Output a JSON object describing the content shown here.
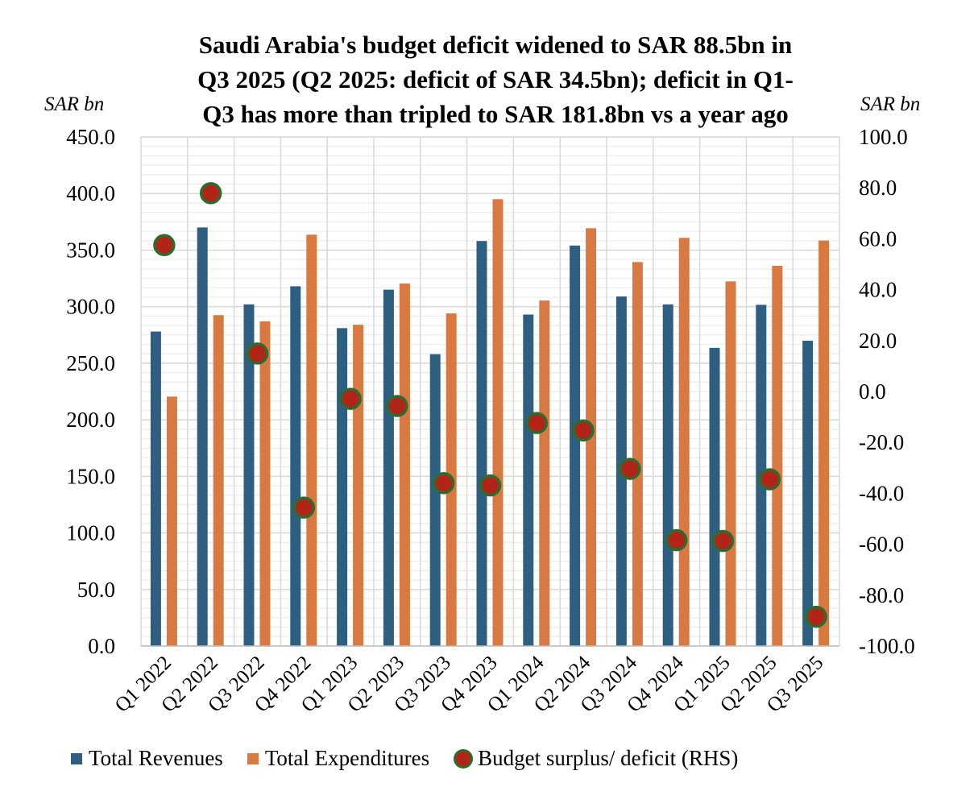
{
  "chart_data": {
    "type": "bar",
    "title": "Saudi Arabia's budget deficit widened to SAR 88.5bn in Q3 2025 (Q2 2025: deficit of SAR 34.5bn); deficit in Q1-Q3 has more than tripled to SAR 181.8bn vs a year ago",
    "title_lines": [
      "Saudi Arabia's budget deficit widened to SAR 88.5bn in",
      "Q3 2025 (Q2 2025: deficit of SAR 34.5bn); deficit in Q1-",
      "Q3 has more than tripled to SAR 181.8bn vs a year ago"
    ],
    "ylabel": "SAR bn",
    "y2label": "SAR bn",
    "ylim": [
      0,
      450
    ],
    "y2lim": [
      -100,
      100
    ],
    "yticks": [
      "0.0",
      "50.0",
      "100.0",
      "150.0",
      "200.0",
      "250.0",
      "300.0",
      "350.0",
      "400.0",
      "450.0"
    ],
    "y2ticks": [
      "-100.0",
      "-80.0",
      "-60.0",
      "-40.0",
      "-20.0",
      "0.0",
      "20.0",
      "40.0",
      "60.0",
      "80.0",
      "100.0"
    ],
    "categories": [
      "Q1 2022",
      "Q2 2022",
      "Q3 2022",
      "Q4 2022",
      "Q1 2023",
      "Q2 2023",
      "Q3 2023",
      "Q4 2023",
      "Q1 2024",
      "Q2 2024",
      "Q3 2024",
      "Q4 2024",
      "Q1 2025",
      "Q2 2025",
      "Q3 2025"
    ],
    "series": [
      {
        "name": "Total Revenues",
        "type": "bar",
        "axis": "left",
        "color": "#2e5f80",
        "values": [
          278,
          370,
          302,
          318,
          281,
          315,
          258,
          358,
          293,
          354,
          309,
          302,
          263.6,
          301.6,
          269.9
        ]
      },
      {
        "name": "Total Expenditures",
        "type": "bar",
        "axis": "left",
        "color": "#d97942",
        "values": [
          220.5,
          292.5,
          287,
          363.6,
          284,
          320.5,
          294,
          395,
          305.4,
          369.3,
          339.4,
          360.8,
          322.3,
          336.1,
          358.4
        ]
      },
      {
        "name": "Budget surplus/ deficit (RHS)",
        "type": "scatter",
        "axis": "right",
        "color": "#b22418",
        "edge_color": "#2e6b2e",
        "values": [
          57.5,
          77.9,
          14.9,
          -45.6,
          -2.9,
          -5.7,
          -36.0,
          -36.9,
          -12.4,
          -15.3,
          -30.4,
          -58.4,
          -58.7,
          -34.5,
          -88.5
        ]
      }
    ],
    "grid": true,
    "legend": "bottom"
  }
}
